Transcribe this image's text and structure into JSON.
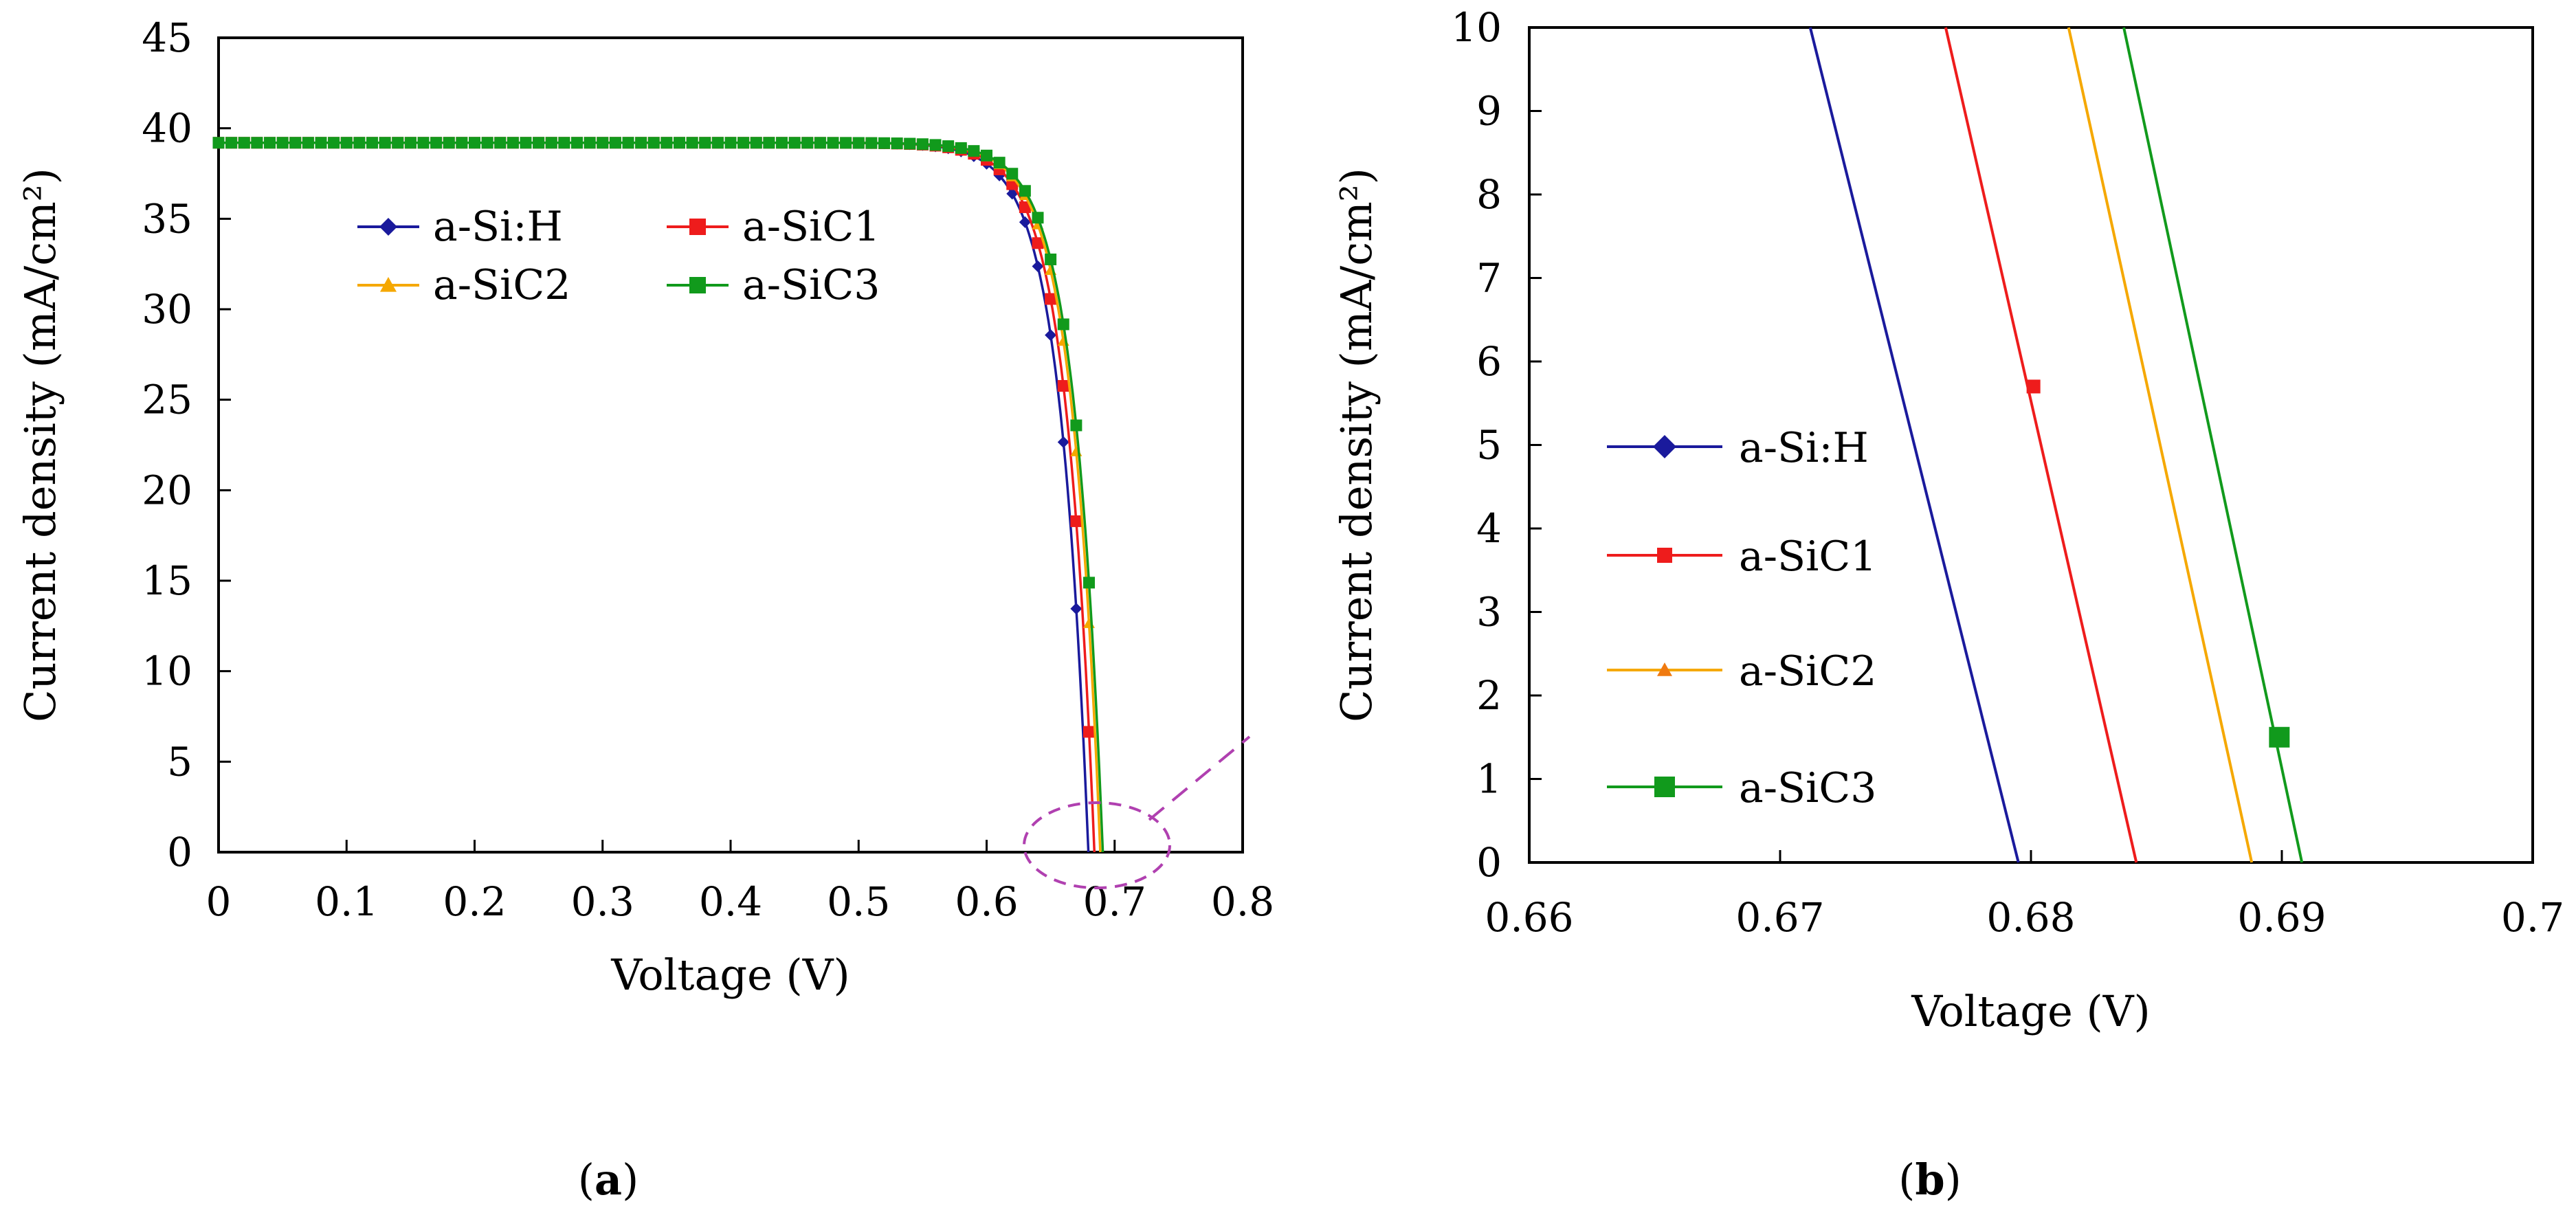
{
  "colors": {
    "a-Si:H": "#1a1a9c",
    "a-SiC1": "#ee1c1c",
    "a-SiC2": "#f5a800",
    "a-SiC3": "#119a1c",
    "zoom": "#b040b0"
  },
  "chart_data": [
    {
      "type": "line",
      "panel": "a",
      "caption_letter": "a",
      "xlabel": "Voltage (V)",
      "ylabel": "Current density (mA/cm²)",
      "xlim": [
        0,
        0.8
      ],
      "ylim": [
        0,
        45
      ],
      "xticks": [
        "0",
        "0.1",
        "0.2",
        "0.3",
        "0.4",
        "0.5",
        "0.6",
        "0.7",
        "0.8"
      ],
      "yticks": [
        "0",
        "5",
        "10",
        "15",
        "20",
        "25",
        "30",
        "35",
        "40",
        "45"
      ],
      "legend_position": "upper-left",
      "series": [
        {
          "name": "a-Si:H",
          "marker": "diamond",
          "jsc": 39.2,
          "voc": 0.6795
        },
        {
          "name": "a-SiC1",
          "marker": "square",
          "jsc": 39.2,
          "voc": 0.6842
        },
        {
          "name": "a-SiC2",
          "marker": "triangle",
          "jsc": 39.2,
          "voc": 0.6888
        },
        {
          "name": "a-SiC3",
          "marker": "square",
          "jsc": 39.2,
          "voc": 0.6908
        }
      ],
      "marker_step": 0.01
    },
    {
      "type": "line",
      "panel": "b",
      "caption_letter": "b",
      "xlabel": "Voltage (V)",
      "ylabel": "Current density (mA/cm²)",
      "xlim": [
        0.66,
        0.7
      ],
      "ylim": [
        0,
        10
      ],
      "xticks": [
        "0.66",
        "0.67",
        "0.68",
        "0.69",
        "0.7"
      ],
      "yticks": [
        "0",
        "1",
        "2",
        "3",
        "4",
        "5",
        "6",
        "7",
        "8",
        "9",
        "10"
      ],
      "legend_position": "middle-left",
      "series": [
        {
          "name": "a-Si:H",
          "marker": "diamond",
          "points": [
            [
              0.6712,
              10
            ],
            [
              0.6795,
              0
            ]
          ]
        },
        {
          "name": "a-SiC1",
          "marker": "square",
          "points": [
            [
              0.6766,
              10
            ],
            [
              0.6842,
              0
            ]
          ],
          "marker_points": [
            [
              0.6801,
              5.7
            ]
          ]
        },
        {
          "name": "a-SiC2",
          "marker": "triangle",
          "points": [
            [
              0.6815,
              10
            ],
            [
              0.6888,
              0
            ]
          ]
        },
        {
          "name": "a-SiC3",
          "marker": "square",
          "points": [
            [
              0.6837,
              10
            ],
            [
              0.6908,
              0
            ]
          ],
          "marker_points": [
            [
              0.6899,
              1.5
            ]
          ]
        }
      ]
    }
  ]
}
